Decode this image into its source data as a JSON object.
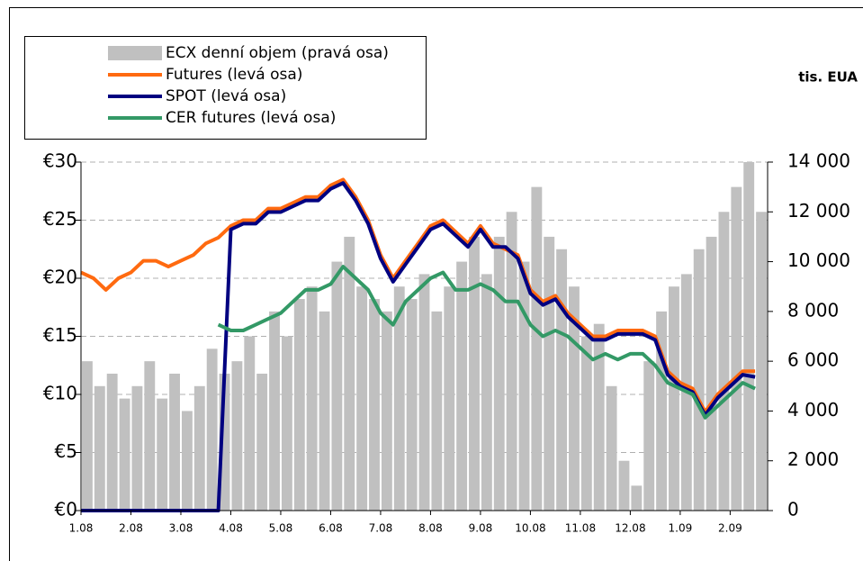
{
  "chart_data": {
    "type": "combo",
    "y2_label": "tis. EUA",
    "legend": "top-left",
    "grid": true,
    "categories": [
      "1.08",
      null,
      null,
      null,
      "2.08",
      null,
      null,
      null,
      "3.08",
      null,
      null,
      null,
      "4.08",
      null,
      null,
      null,
      "5.08",
      null,
      null,
      null,
      "6.08",
      null,
      null,
      null,
      "7.08",
      null,
      null,
      null,
      "8.08",
      null,
      null,
      null,
      "9.08",
      null,
      null,
      null,
      "10.08",
      null,
      null,
      null,
      "11.08",
      null,
      null,
      null,
      "12.08",
      null,
      null,
      null,
      "1.09",
      null,
      null,
      null,
      "2.09",
      null,
      null
    ],
    "ylim": [
      0,
      30
    ],
    "yticks": [
      {
        "value": 0,
        "label": "€0"
      },
      {
        "value": 5,
        "label": "€5"
      },
      {
        "value": 10,
        "label": "€10"
      },
      {
        "value": 15,
        "label": "€15"
      },
      {
        "value": 20,
        "label": "€20"
      },
      {
        "value": 25,
        "label": "€25"
      },
      {
        "value": 30,
        "label": "€30"
      }
    ],
    "y2lim": [
      0,
      14000
    ],
    "y2ticks": [
      0,
      {
        "value": 2000,
        "label": "2 000"
      },
      {
        "value": 4000,
        "label": "4 000"
      },
      {
        "value": 6000,
        "label": "6 000"
      },
      {
        "value": 8000,
        "label": "8 000"
      },
      {
        "value": 10000,
        "label": "10 000"
      },
      {
        "value": 12000,
        "label": "12 000"
      },
      {
        "value": 14000,
        "label": "14 000"
      }
    ],
    "series": [
      {
        "name": "ECX denní objem (pravá osa)",
        "type": "bar",
        "axis": "y2",
        "color": "#c0c0c0",
        "values": [
          6000,
          5000,
          5500,
          4500,
          5000,
          6000,
          4500,
          5500,
          4000,
          5000,
          6500,
          5500,
          6000,
          7000,
          5500,
          8000,
          7000,
          8500,
          9000,
          8000,
          10000,
          11000,
          9000,
          8500,
          8000,
          9000,
          8500,
          9500,
          8000,
          9000,
          10000,
          11000,
          9500,
          11000,
          12000,
          10000,
          13000,
          11000,
          10500,
          9000,
          7000,
          7500,
          5000,
          2000,
          1000,
          6000,
          8000,
          9000,
          9500,
          10500,
          11000,
          12000,
          13000,
          14000,
          12000
        ]
      },
      {
        "name": "Futures (levá osa)",
        "type": "line",
        "color": "#ff6a10",
        "values": [
          20.5,
          20,
          19,
          20,
          20.5,
          21.5,
          21.5,
          21,
          21.5,
          22,
          23,
          23.5,
          24.5,
          25,
          25,
          26,
          26,
          26.5,
          27,
          27,
          28,
          28.5,
          27,
          25,
          22,
          20,
          21.5,
          23,
          24.5,
          25,
          24,
          23,
          24.5,
          23,
          22.5,
          22,
          19,
          18,
          18.5,
          17,
          16,
          15,
          15,
          15.5,
          15.5,
          15.5,
          15,
          12,
          11,
          10.5,
          8.5,
          10,
          11,
          12,
          12
        ]
      },
      {
        "name": "SPOT (levá osa)",
        "type": "line",
        "color": "#000080",
        "values": [
          0,
          0,
          0,
          0,
          0,
          0,
          0,
          0,
          0,
          0,
          0,
          0,
          24.2,
          24.7,
          24.7,
          25.7,
          25.7,
          26.2,
          26.7,
          26.7,
          27.7,
          28.2,
          26.7,
          24.7,
          21.7,
          19.7,
          21.2,
          22.7,
          24.2,
          24.7,
          23.7,
          22.7,
          24.2,
          22.7,
          22.7,
          21.7,
          18.7,
          17.7,
          18.2,
          16.7,
          15.7,
          14.7,
          14.7,
          15.2,
          15.2,
          15.2,
          14.7,
          11.7,
          10.7,
          10.2,
          8.2,
          9.7,
          10.7,
          11.7,
          11.5
        ]
      },
      {
        "name": "CER futures (levá osa)",
        "type": "line",
        "color": "#339966",
        "values": [
          null,
          null,
          null,
          null,
          null,
          null,
          null,
          null,
          null,
          null,
          null,
          16,
          15.5,
          15.5,
          16,
          16.5,
          17,
          18,
          19,
          19,
          19.5,
          21,
          20,
          19,
          17,
          16,
          18,
          19,
          20,
          20.5,
          19,
          19,
          19.5,
          19,
          18,
          18,
          16,
          15,
          15.5,
          15,
          14,
          13,
          13.5,
          13,
          13.5,
          13.5,
          12.5,
          11,
          10.5,
          10,
          8,
          9,
          10,
          11,
          10.5
        ]
      }
    ]
  }
}
